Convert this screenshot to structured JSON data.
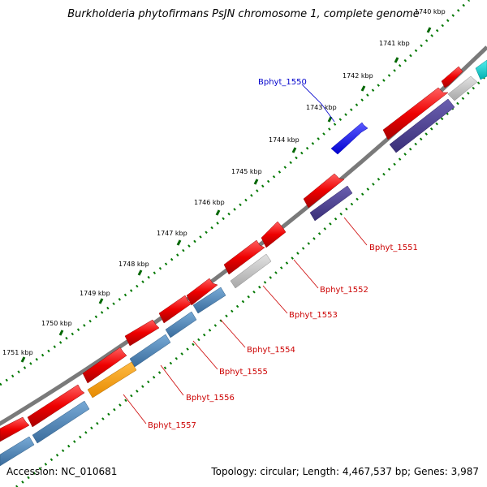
{
  "title": "Burkholderia phytofirmans PsJN chromosome 1, complete genome",
  "footer": {
    "accession": "Accession: NC_010681",
    "summary": "Topology: circular; Length: 4,467,537 bp; Genes: 3,987"
  },
  "scale_labels": [
    "1740 kbp",
    "1741 kbp",
    "1742 kbp",
    "1743 kbp",
    "1744 kbp",
    "1745 kbp",
    "1746 kbp",
    "1747 kbp",
    "1748 kbp",
    "1749 kbp",
    "1750 kbp",
    "1751 kbp"
  ],
  "gene_labels": [
    {
      "text": "Bphyt_1550",
      "color": "#0000cc"
    },
    {
      "text": "Bphyt_1551",
      "color": "#cc0000"
    },
    {
      "text": "Bphyt_1552",
      "color": "#cc0000"
    },
    {
      "text": "Bphyt_1553",
      "color": "#cc0000"
    },
    {
      "text": "Bphyt_1554",
      "color": "#cc0000"
    },
    {
      "text": "Bphyt_1555",
      "color": "#cc0000"
    },
    {
      "text": "Bphyt_1556",
      "color": "#cc0000"
    },
    {
      "text": "Bphyt_1557",
      "color": "#cc0000"
    }
  ],
  "colors": {
    "backbone": "#7a7a7a",
    "cds": "#ee0000",
    "highlight": "#0000ee",
    "protein_steelblue": "#4682b4",
    "protein_darkslateblue": "#483d8b",
    "protein_gray": "#c0c0c0",
    "protein_orange": "#ff9900",
    "protein_cyan": "#00cccc",
    "ruler": "#007700"
  }
}
